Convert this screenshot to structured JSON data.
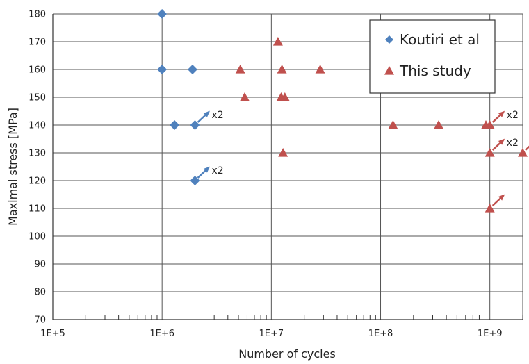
{
  "chart_data": {
    "type": "scatter",
    "title": "",
    "xlabel": "Number of cycles",
    "ylabel": "Maximal stress [MPa]",
    "xscale": "log",
    "xlim": [
      100000,
      2000000000
    ],
    "ylim": [
      70,
      180
    ],
    "grid": true,
    "legend_position": "top-right",
    "x_tick_values": [
      100000,
      1000000,
      10000000,
      100000000,
      1000000000
    ],
    "x_tick_labels": [
      "1E+5",
      "1E+6",
      "1E+7",
      "1E+8",
      "1E+9"
    ],
    "y_ticks": [
      70,
      80,
      90,
      100,
      110,
      120,
      130,
      140,
      150,
      160,
      170,
      180
    ],
    "series": [
      {
        "name": "Koutiri et al",
        "marker": "diamond",
        "color": "#4f81bd",
        "points": [
          {
            "x": 1000000,
            "y": 180
          },
          {
            "x": 1000000,
            "y": 160
          },
          {
            "x": 1900000,
            "y": 160
          },
          {
            "x": 1300000,
            "y": 140
          },
          {
            "x": 2000000,
            "y": 140
          },
          {
            "x": 2000000,
            "y": 120
          }
        ]
      },
      {
        "name": "This study",
        "marker": "triangle",
        "color": "#c0504d",
        "points": [
          {
            "x": 11500000,
            "y": 170
          },
          {
            "x": 5200000,
            "y": 160
          },
          {
            "x": 12500000,
            "y": 160
          },
          {
            "x": 28000000,
            "y": 160
          },
          {
            "x": 5700000,
            "y": 150
          },
          {
            "x": 12300000,
            "y": 150
          },
          {
            "x": 13300000,
            "y": 150
          },
          {
            "x": 130000000,
            "y": 140
          },
          {
            "x": 340000000,
            "y": 140
          },
          {
            "x": 920000000,
            "y": 140
          },
          {
            "x": 1000000000,
            "y": 140
          },
          {
            "x": 12800000,
            "y": 130
          },
          {
            "x": 1000000000,
            "y": 130
          },
          {
            "x": 2000000000,
            "y": 130
          },
          {
            "x": 1000000000,
            "y": 110
          }
        ]
      }
    ],
    "annotations": [
      {
        "kind": "runout-arrow",
        "x": 2000000,
        "y": 140,
        "color": "#4f81bd",
        "text": "x2"
      },
      {
        "kind": "runout-arrow",
        "x": 2000000,
        "y": 120,
        "color": "#4f81bd",
        "text": "x2"
      },
      {
        "kind": "runout-arrow",
        "x": 1000000000,
        "y": 140,
        "color": "#c0504d",
        "text": "x2"
      },
      {
        "kind": "runout-arrow",
        "x": 1000000000,
        "y": 130,
        "color": "#c0504d",
        "text": "x2"
      },
      {
        "kind": "runout-arrow",
        "x": 2000000000,
        "y": 130,
        "color": "#c0504d",
        "text": ""
      },
      {
        "kind": "runout-arrow",
        "x": 1000000000,
        "y": 110,
        "color": "#c0504d",
        "text": ""
      }
    ]
  }
}
